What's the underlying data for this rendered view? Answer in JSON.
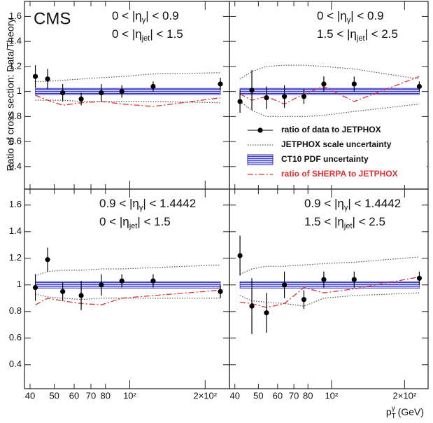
{
  "chart_data": {
    "type": "scatter",
    "cms_label": "CMS",
    "ylabel": "Ratio of cross section: Data/Theory",
    "xlabel": [
      "p",
      "T",
      "γ",
      " (GeV)"
    ],
    "log_x": true,
    "grid": false,
    "xlim": [
      38,
      250
    ],
    "ylim": [
      0.22,
      1.72
    ],
    "xticks": [
      40,
      50,
      60,
      70,
      80,
      {
        "value": 100,
        "label": "10²"
      },
      {
        "value": 200,
        "label": "2×10²"
      }
    ],
    "yticks": [
      0.4,
      0.6,
      0.8,
      1,
      1.2,
      1.4,
      1.6
    ],
    "legend": "lower right",
    "legend_panel": 1,
    "series": [
      {
        "name": "ratio of data to JETPHOX",
        "color": "#000000"
      },
      {
        "name": "JETPHOX scale uncertainty",
        "color": "#555555"
      },
      {
        "name": "CT10 PDF uncertainty",
        "color": "#2c2cc8"
      },
      {
        "name": "ratio of SHERPA to JETPHOX",
        "color": "#e03030"
      }
    ],
    "x": [
      42,
      47,
      54,
      64,
      77,
      93,
      124,
      230
    ],
    "panels": [
      {
        "labels": [
          [
            "0 < |η",
            "γ",
            "| < 0.9"
          ],
          [
            "0 < |η",
            "jet",
            "| < 1.5"
          ]
        ],
        "values": [
          1.12,
          1.1,
          0.99,
          0.94,
          0.99,
          1.0,
          1.04,
          1.06
        ],
        "errors": [
          0.09,
          0.08,
          0.07,
          0.05,
          0.07,
          0.05,
          0.04,
          0.05
        ],
        "scale_high": [
          1.08,
          1.08,
          1.09,
          1.1,
          1.11,
          1.12,
          1.14,
          1.15
        ],
        "scale_low": [
          0.93,
          0.93,
          0.93,
          0.92,
          0.92,
          0.92,
          0.92,
          0.91
        ],
        "pdf_high": [
          1.025,
          1.025,
          1.025,
          1.025,
          1.025,
          1.025,
          1.025,
          1.025
        ],
        "pdf_low": [
          0.975,
          0.975,
          0.975,
          0.975,
          0.975,
          0.975,
          0.975,
          0.975
        ],
        "sherpa": [
          0.97,
          0.93,
          0.89,
          0.91,
          0.92,
          0.9,
          0.88,
          0.95
        ]
      },
      {
        "labels": [
          [
            "0 < |η",
            "γ",
            "| < 0.9"
          ],
          [
            "1.5 < |η",
            "jet",
            "| < 2.5"
          ]
        ],
        "values": [
          0.92,
          1.01,
          0.95,
          0.96,
          0.96,
          1.06,
          1.06,
          1.04
        ],
        "errors": [
          0.09,
          0.16,
          0.09,
          0.09,
          0.06,
          0.06,
          0.06,
          0.04
        ],
        "scale_high": [
          1.1,
          1.16,
          1.2,
          1.21,
          1.21,
          1.2,
          1.18,
          1.1
        ],
        "scale_low": [
          0.92,
          0.85,
          0.8,
          0.8,
          0.8,
          0.81,
          0.84,
          0.9
        ],
        "pdf_high": [
          1.025,
          1.025,
          1.025,
          1.025,
          1.025,
          1.025,
          1.025,
          1.025
        ],
        "pdf_low": [
          0.975,
          0.975,
          0.975,
          0.975,
          0.975,
          0.975,
          0.975,
          0.975
        ],
        "sherpa": [
          0.98,
          0.93,
          0.96,
          0.9,
          0.98,
          1.04,
          0.92,
          1.12
        ]
      },
      {
        "labels": [
          [
            "0.9 < |η",
            "γ",
            "| < 1.4442"
          ],
          [
            "0 < |η",
            "jet",
            "| < 1.5"
          ]
        ],
        "values": [
          0.98,
          1.19,
          0.95,
          0.92,
          1.0,
          1.03,
          1.03,
          0.95
        ],
        "errors": [
          0.1,
          0.09,
          0.07,
          0.11,
          0.08,
          0.05,
          0.05,
          0.05
        ],
        "scale_high": [
          1.07,
          1.1,
          1.11,
          1.11,
          1.12,
          1.12,
          1.13,
          1.15
        ],
        "scale_low": [
          0.93,
          0.91,
          0.9,
          0.89,
          0.9,
          0.9,
          0.9,
          0.9
        ],
        "pdf_high": [
          1.025,
          1.025,
          1.025,
          1.025,
          1.025,
          1.025,
          1.025,
          1.025
        ],
        "pdf_low": [
          0.975,
          0.975,
          0.975,
          0.975,
          0.975,
          0.975,
          0.975,
          0.975
        ],
        "sherpa": [
          0.85,
          0.9,
          0.88,
          0.86,
          0.85,
          0.9,
          0.92,
          0.96
        ]
      },
      {
        "labels": [
          [
            "0.9 < |η",
            "γ",
            "| < 1.4442"
          ],
          [
            "1.5 < |η",
            "jet",
            "| < 2.5"
          ]
        ],
        "values": [
          1.22,
          0.84,
          0.79,
          1.0,
          0.89,
          1.04,
          1.04,
          1.05
        ],
        "errors": [
          0.15,
          0.21,
          0.15,
          0.1,
          0.07,
          0.06,
          0.06,
          0.05
        ],
        "scale_high": [
          1.08,
          1.12,
          1.14,
          1.14,
          1.15,
          1.16,
          1.17,
          1.21
        ],
        "scale_low": [
          0.92,
          0.88,
          0.87,
          0.86,
          0.84,
          0.9,
          0.92,
          0.94
        ],
        "pdf_high": [
          1.025,
          1.025,
          1.025,
          1.025,
          1.025,
          1.025,
          1.025,
          1.025
        ],
        "pdf_low": [
          0.975,
          0.975,
          0.975,
          0.975,
          0.975,
          0.975,
          0.975,
          0.975
        ],
        "sherpa": [
          0.87,
          0.86,
          0.83,
          0.86,
          0.98,
          0.94,
          0.97,
          1.06
        ]
      }
    ]
  }
}
